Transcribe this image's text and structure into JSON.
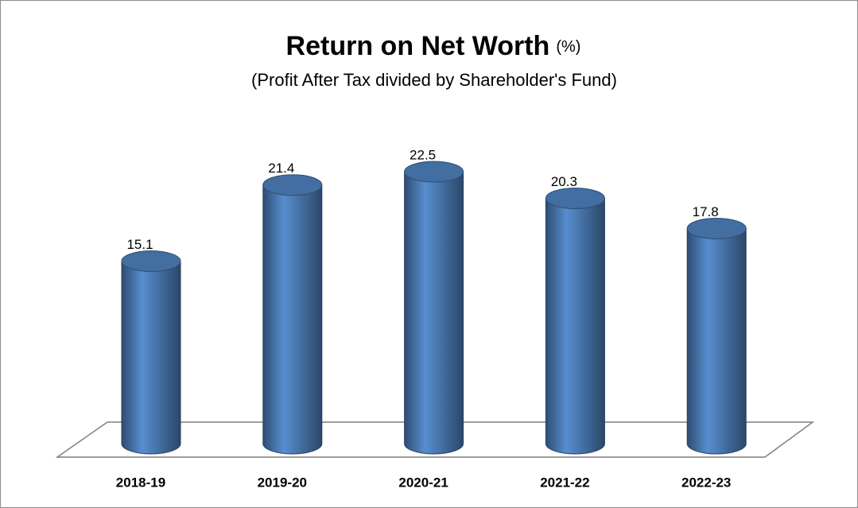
{
  "chart_data": {
    "type": "bar3d",
    "title": "Return on Net Worth",
    "title_unit": "(%)",
    "subtitle": "(Profit After Tax divided by Shareholder's Fund)",
    "categories": [
      "2018-19",
      "2019-20",
      "2020-21",
      "2021-22",
      "2022-23"
    ],
    "values": [
      15.1,
      21.4,
      22.5,
      20.3,
      17.8
    ],
    "color": "#4f81bd"
  }
}
